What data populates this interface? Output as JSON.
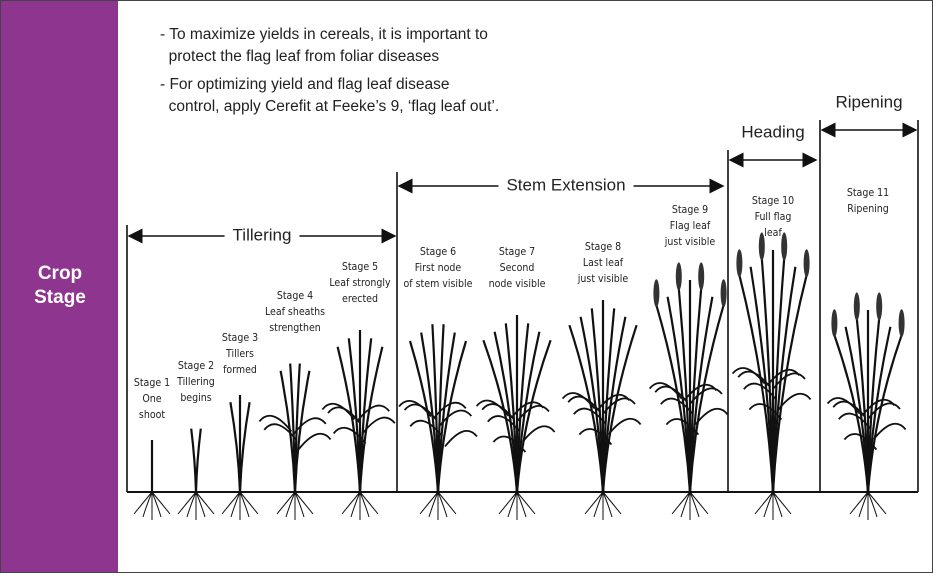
{
  "sidebar": {
    "lines": [
      "Crop",
      "Stage"
    ]
  },
  "notes": [
    {
      "lines": [
        "- To maximize yields in cereals, it is important to",
        "  protect the flag leaf from foliar diseases"
      ]
    },
    {
      "lines": [
        "- For optimizing yield and flag leaf disease",
        "  control, apply Cerefit at Feeke’s 9, ‘flag leaf out’."
      ]
    }
  ],
  "phases": [
    {
      "label": "Tillering"
    },
    {
      "label": "Stem Extension"
    },
    {
      "label": "Heading"
    },
    {
      "label": "Ripening"
    }
  ],
  "stages": [
    {
      "lines": [
        "Stage 1",
        "One",
        "shoot"
      ]
    },
    {
      "lines": [
        "Stage 2",
        "Tillering",
        "begins"
      ]
    },
    {
      "lines": [
        "Stage 3",
        "Tillers",
        "formed"
      ]
    },
    {
      "lines": [
        "Stage 4",
        "Leaf sheaths",
        "strengthen"
      ]
    },
    {
      "lines": [
        "Stage 5",
        "Leaf strongly",
        "erected"
      ]
    },
    {
      "lines": [
        "Stage 6",
        "First node",
        "of stem visible"
      ]
    },
    {
      "lines": [
        "Stage 7",
        "Second",
        "node visible"
      ]
    },
    {
      "lines": [
        "Stage 8",
        "Last leaf",
        "just visible"
      ]
    },
    {
      "lines": [
        "Stage 9",
        "Flag leaf",
        "just visible"
      ]
    },
    {
      "lines": [
        "Stage 10",
        "Full flag",
        "leaf"
      ]
    },
    {
      "lines": [
        "Stage 11",
        "Ripening"
      ]
    }
  ]
}
